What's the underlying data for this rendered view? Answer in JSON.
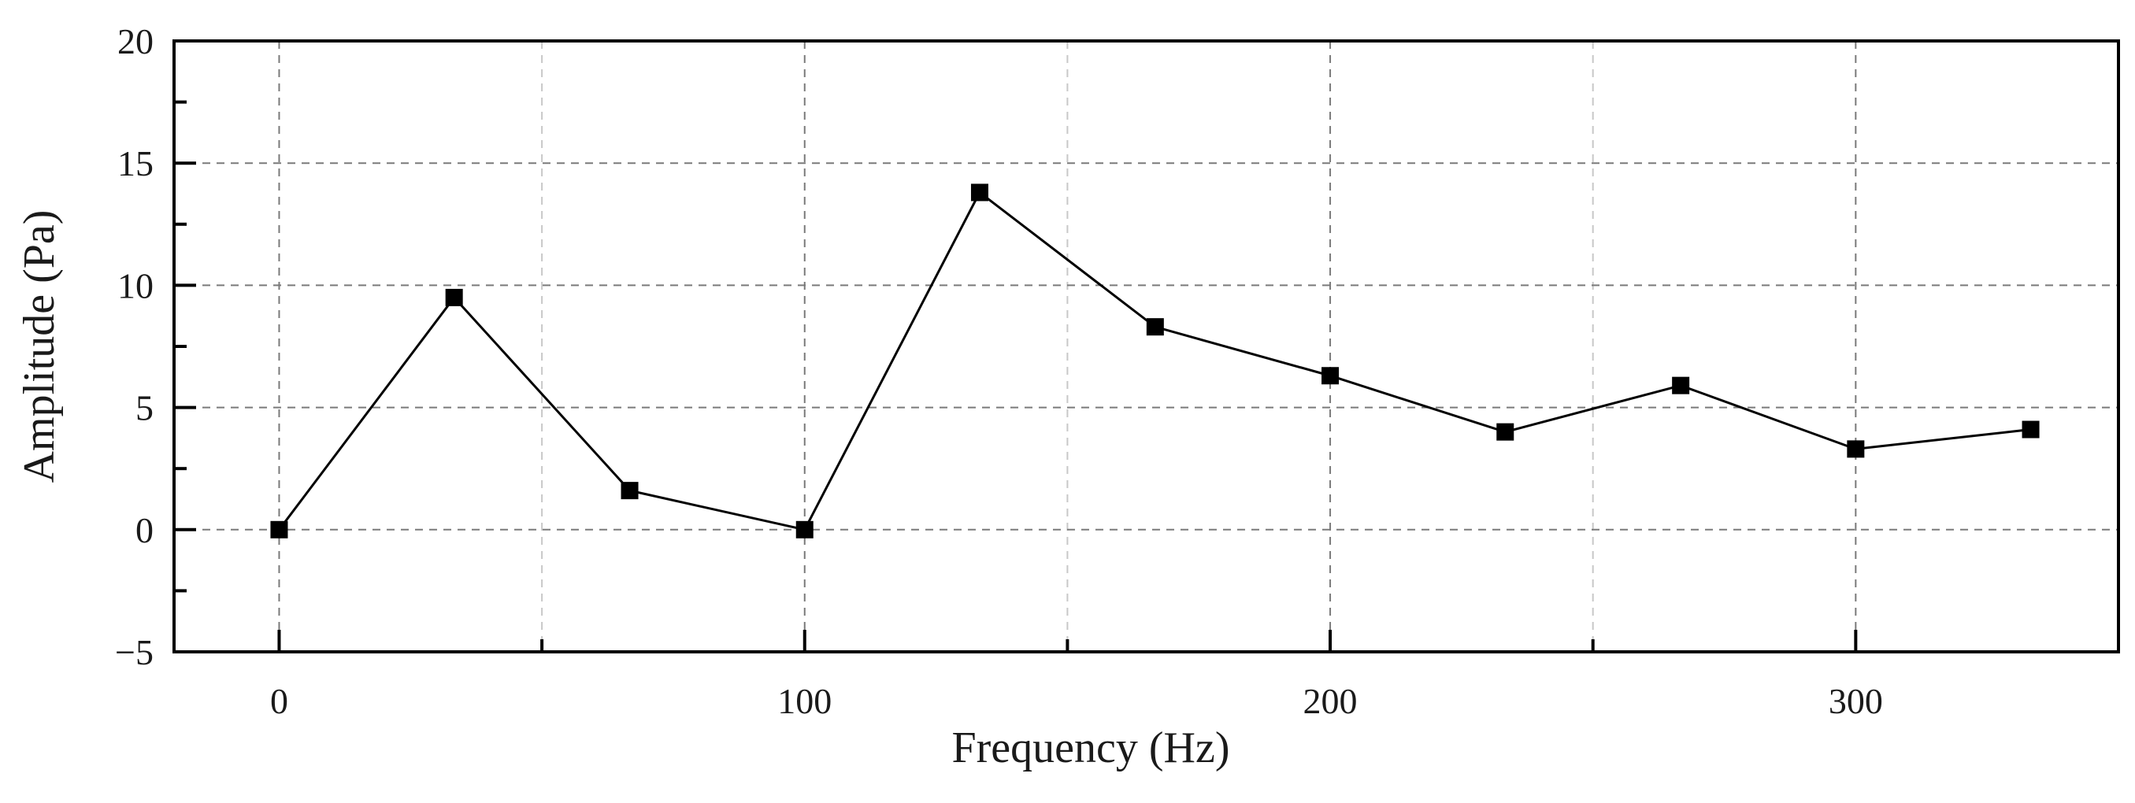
{
  "chart_data": {
    "type": "line",
    "title": "",
    "xlabel": "Frequency (Hz)",
    "ylabel": "Amplitude (Pa)",
    "xlim": [
      -20,
      350
    ],
    "ylim": [
      -5,
      20
    ],
    "x_major_ticks": [
      0,
      100,
      200,
      300
    ],
    "x_minor_ticks": [
      50,
      150,
      250
    ],
    "y_major_ticks": [
      -5,
      0,
      5,
      10,
      15,
      20
    ],
    "y_minor_ticks": [
      -2.5,
      2.5,
      7.5,
      12.5,
      17.5
    ],
    "x_tick_labels": [
      "0",
      "100",
      "200",
      "300"
    ],
    "y_tick_labels": [
      "−5",
      "0",
      "5",
      "10",
      "15",
      "20"
    ],
    "grid": true,
    "marker": "square",
    "series": [
      {
        "name": "Amplitude",
        "x": [
          0,
          33.3,
          66.7,
          100,
          133.3,
          166.7,
          200,
          233.3,
          266.7,
          300,
          333.3
        ],
        "y": [
          0.0,
          9.5,
          1.6,
          0.0,
          13.8,
          8.3,
          6.3,
          4.0,
          5.9,
          3.3,
          4.1
        ]
      }
    ]
  }
}
